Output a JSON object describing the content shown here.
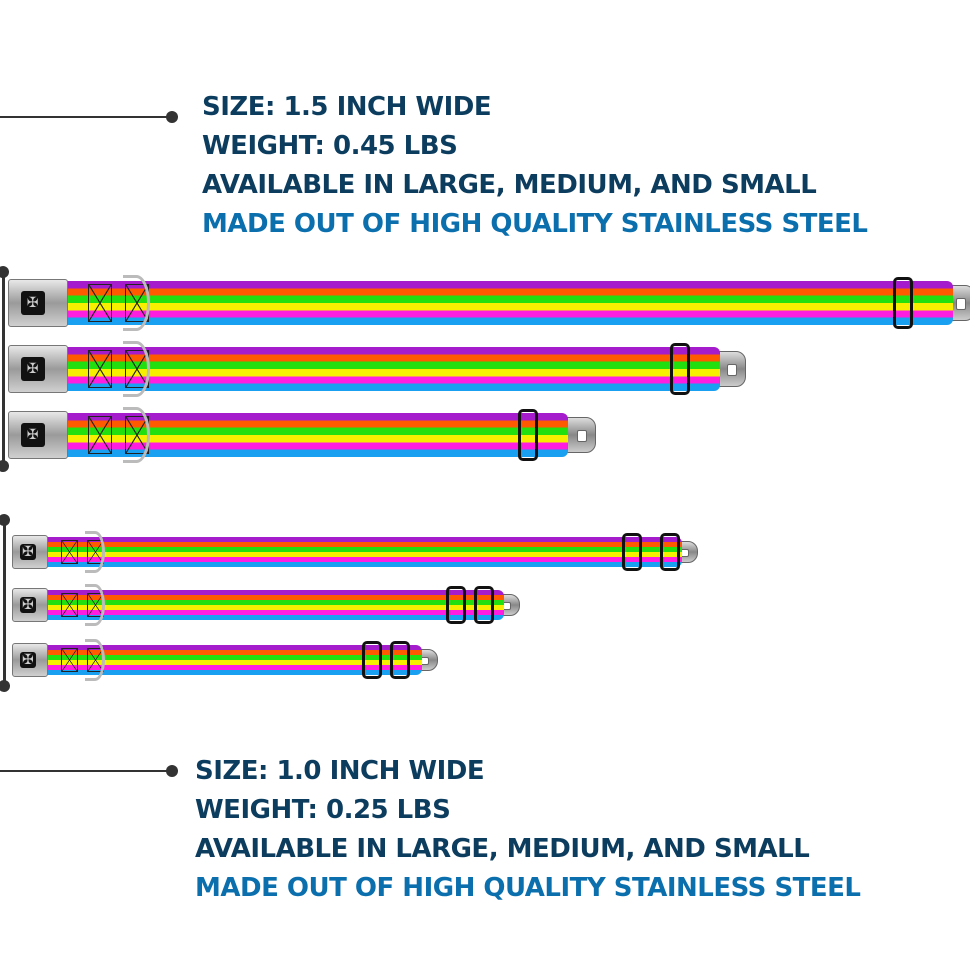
{
  "wide_collars": {
    "lines": [
      "SIZE: 1.5 INCH WIDE",
      "WEIGHT: 0.45 LBS",
      "AVAILABLE IN LARGE, MEDIUM, AND SMALL"
    ],
    "highlight": "MADE OUT OF HIGH QUALITY STAINLESS STEEL",
    "sizes": [
      "large",
      "medium",
      "small"
    ]
  },
  "narrow_collars": {
    "lines": [
      "SIZE: 1.0 INCH WIDE",
      "WEIGHT: 0.25 LBS",
      "AVAILABLE IN LARGE, MEDIUM, AND SMALL"
    ],
    "highlight": "MADE OUT OF HIGH QUALITY STAINLESS STEEL",
    "sizes": [
      "large",
      "medium",
      "small"
    ]
  },
  "colors": {
    "text": "#0c3c5e",
    "highlight": "#0b6fae",
    "stripes": [
      "#a41ccc",
      "#ff5a00",
      "#22e010",
      "#f6f000",
      "#ff1ee0",
      "#1aa0f0"
    ]
  },
  "icons": {
    "buckle_logo": "bone-icon"
  }
}
